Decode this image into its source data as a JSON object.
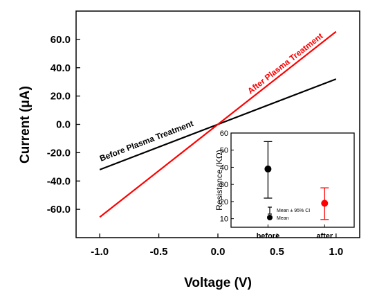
{
  "chart_data": [
    {
      "type": "line",
      "xlabel": "Voltage (V)",
      "ylabel": "Current (μA)",
      "xlim": [
        -1.2,
        1.2
      ],
      "ylim": [
        -80,
        80
      ],
      "xticks": [
        -1.0,
        -0.5,
        0.0,
        0.5,
        1.0
      ],
      "xtick_labels": [
        "-1.0",
        "-0.5",
        "0.0",
        "0.5",
        "1.0"
      ],
      "yticks": [
        -60,
        -40,
        -20,
        0,
        20,
        40,
        60
      ],
      "ytick_labels": [
        "-60.0",
        "-40.0",
        "-20.0",
        "0.0",
        "20.0",
        "40.0",
        "60.0"
      ],
      "series": [
        {
          "name": "Before Plasma Treatment",
          "color": "#000000",
          "x": [
            -1.0,
            0.0,
            1.0
          ],
          "y": [
            -32,
            0,
            32
          ]
        },
        {
          "name": "After Plasma Treatment",
          "color": "#ff0000",
          "x": [
            -1.0,
            0.0,
            1.0
          ],
          "y": [
            -65.5,
            0,
            65.5
          ]
        }
      ]
    },
    {
      "type": "scatter",
      "inset": true,
      "ylabel": "Resistance (KΩ)",
      "ylim": [
        5,
        60
      ],
      "yticks": [
        10,
        20,
        30,
        40,
        50,
        60
      ],
      "ytick_labels": [
        "10",
        "20",
        "30",
        "40",
        "50",
        "60"
      ],
      "categories": [
        "before",
        "after"
      ],
      "points": [
        {
          "category": "before",
          "mean": 39,
          "ci_low": 22,
          "ci_high": 55,
          "color": "#000000"
        },
        {
          "category": "after",
          "mean": 19,
          "ci_low": 9.5,
          "ci_high": 28,
          "color": "#ff0000"
        }
      ],
      "legend": {
        "ci_label": "Mean ± 95% CI",
        "mean_label": "Mean"
      }
    }
  ]
}
